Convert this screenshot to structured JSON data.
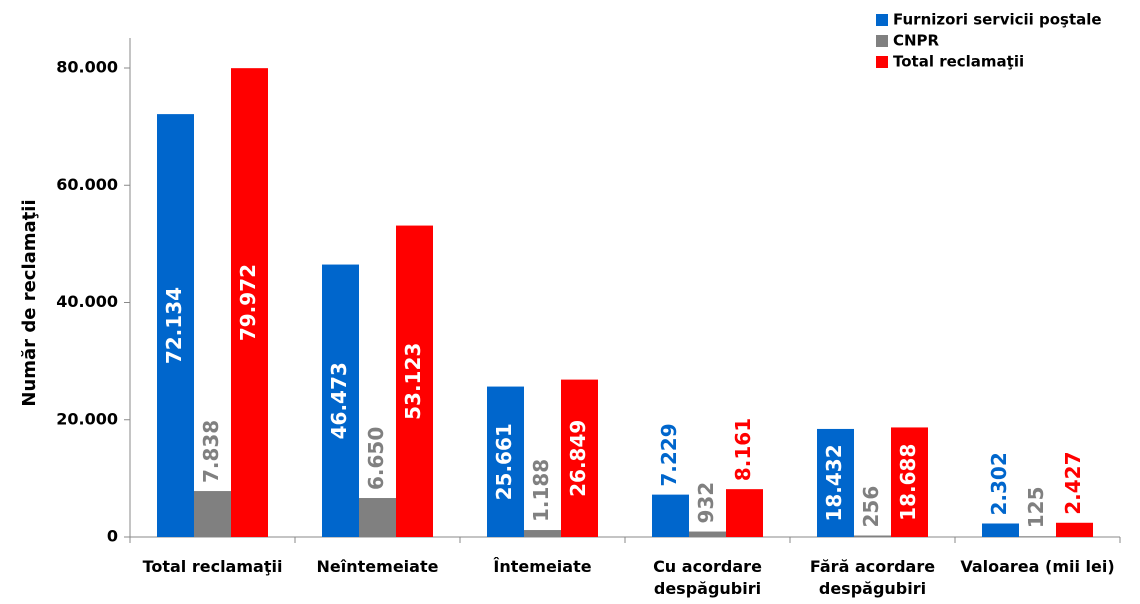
{
  "chart_data": {
    "type": "bar",
    "y_label": "Număr de reclamaţii",
    "categories": [
      "Total reclamaţii",
      "Neîntemeiate",
      "Întemeiate",
      "Cu acordare despăgubiri",
      "Fără acordare despăgubiri",
      "Valoarea (mii lei)"
    ],
    "series": [
      {
        "name": "Furnizori servicii poştale",
        "color": "#0066cc",
        "values": [
          72134,
          46473,
          25661,
          7229,
          18432,
          2302
        ],
        "value_labels": [
          "72.134",
          "46.473",
          "25.661",
          "7.229",
          "18.432",
          "2.302"
        ]
      },
      {
        "name": "CNPR",
        "color": "#808080",
        "values": [
          7838,
          6650,
          1188,
          932,
          256,
          125
        ],
        "value_labels": [
          "7.838",
          "6.650",
          "1.188",
          "932",
          "256",
          "125"
        ]
      },
      {
        "name": "Total reclamaţii",
        "color": "#ff0000",
        "values": [
          79972,
          53123,
          26849,
          8161,
          18688,
          2427
        ],
        "value_labels": [
          "79.972",
          "53.123",
          "26.849",
          "8.161",
          "18.688",
          "2.427"
        ]
      }
    ],
    "ylim": [
      0,
      80000
    ],
    "yticks": [
      0,
      {
        "value": 20000,
        "label": "20.000"
      },
      {
        "value": 40000,
        "label": "40.000"
      },
      {
        "value": 60000,
        "label": "60.000"
      },
      {
        "value": 80000,
        "label": "80.000"
      }
    ],
    "legend": "top-right"
  }
}
